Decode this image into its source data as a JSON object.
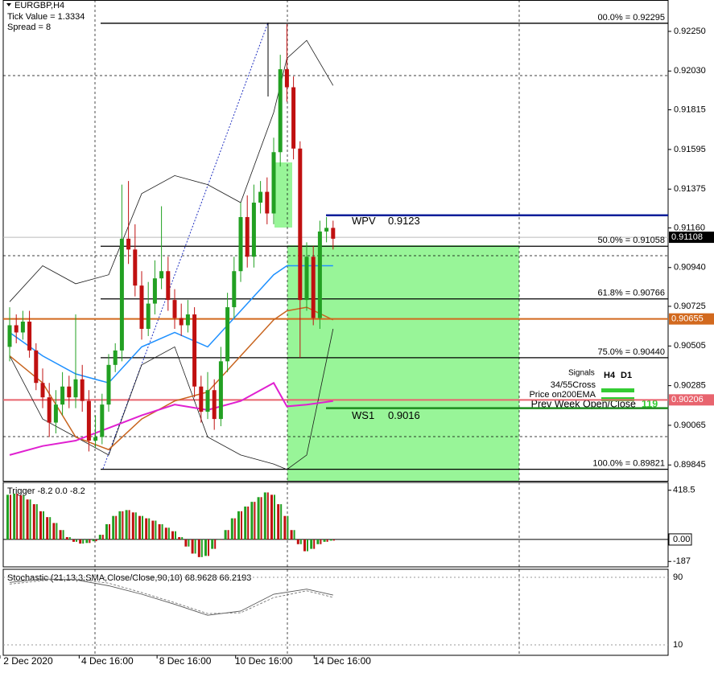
{
  "chart_data": {
    "type": "candlestick",
    "header": [
      "EURGBP,H4",
      "Tick Value = 1.3334",
      "Spread = 8"
    ],
    "up_color": "#22a022",
    "down_color": "#c01010",
    "ylim": [
      0.89757,
      0.92424
    ],
    "yticks": [
      {
        "value": 0.9225,
        "label": "0.92250"
      },
      {
        "value": 0.9203,
        "label": "0.92030"
      },
      0.91815,
      0.91595,
      0.91375,
      {
        "value": 0.9116,
        "label": "0.91160"
      },
      {
        "value": 0.9094,
        "label": "0.90940"
      },
      0.90725,
      0.90505,
      0.90285,
      0.90065,
      0.89845
    ],
    "xticks": [
      {
        "value": 2.8,
        "label": "2 Dec 2020"
      },
      {
        "value": 14.8,
        "label": "4 Dec 16:00"
      },
      {
        "value": 26.6,
        "label": "8 Dec 16:00"
      },
      {
        "value": 38.5,
        "label": "10 Dec 16:00"
      },
      {
        "value": 50.4,
        "label": "14 Dec 16:00"
      }
    ],
    "open": [
      0.905,
      0.9062,
      0.9058,
      0.9064,
      0.9048,
      0.903,
      0.9022,
      0.9008,
      0.9018,
      0.9028,
      0.9022,
      0.9032,
      0.902,
      0.8998,
      0.9,
      0.9018,
      0.904,
      0.9048,
      0.911,
      0.9104,
      0.9084,
      0.906,
      0.9074,
      0.9088,
      0.9092,
      0.9076,
      0.9066,
      0.9062,
      0.9068,
      0.9028,
      0.9014,
      0.9026,
      0.901,
      0.9042,
      0.9072,
      0.9092,
      0.9122,
      0.91,
      0.913,
      0.9136,
      0.9124,
      0.9158,
      0.9204,
      0.9194,
      0.916,
      0.9076,
      0.91,
      0.9066,
      0.9114,
      0.9116
    ],
    "high": [
      0.9072,
      0.9068,
      0.907,
      0.907,
      0.9052,
      0.9038,
      0.903,
      0.9026,
      0.9036,
      0.9034,
      0.9068,
      0.904,
      0.9026,
      0.9012,
      0.9024,
      0.9046,
      0.9052,
      0.914,
      0.9142,
      0.9118,
      0.9092,
      0.9086,
      0.9098,
      0.9128,
      0.91,
      0.9082,
      0.9074,
      0.9076,
      0.9072,
      0.9034,
      0.9036,
      0.9032,
      0.905,
      0.908,
      0.91,
      0.913,
      0.9134,
      0.914,
      0.9142,
      0.9144,
      0.9166,
      0.9212,
      0.9229,
      0.92,
      0.9164,
      0.9108,
      0.9106,
      0.912,
      0.9122,
      0.912
    ],
    "low": [
      0.9042,
      0.9052,
      0.9054,
      0.9044,
      0.9026,
      0.9016,
      0.9,
      0.9002,
      0.9012,
      0.9016,
      0.9016,
      0.9014,
      0.8992,
      0.8994,
      0.8996,
      0.9014,
      0.9036,
      0.9042,
      0.9096,
      0.9078,
      0.9054,
      0.9056,
      0.9068,
      0.9082,
      0.907,
      0.906,
      0.9056,
      0.9058,
      0.9022,
      0.9008,
      0.901,
      0.9004,
      0.9006,
      0.9036,
      0.9066,
      0.9086,
      0.9094,
      0.9094,
      0.9124,
      0.9118,
      0.9118,
      0.915,
      0.9186,
      0.9154,
      0.9044,
      0.907,
      0.9062,
      0.906,
      0.9108,
      0.9104
    ],
    "close": [
      0.9062,
      0.9058,
      0.9064,
      0.9048,
      0.903,
      0.9022,
      0.9008,
      0.9018,
      0.9028,
      0.9022,
      0.9032,
      0.902,
      0.8998,
      0.9,
      0.9018,
      0.904,
      0.9048,
      0.911,
      0.9104,
      0.9084,
      0.906,
      0.9074,
      0.9088,
      0.9092,
      0.9076,
      0.9066,
      0.9062,
      0.9068,
      0.9028,
      0.9014,
      0.9026,
      0.901,
      0.9042,
      0.9072,
      0.9092,
      0.9122,
      0.91,
      0.913,
      0.9136,
      0.9124,
      0.9158,
      0.9204,
      0.9194,
      0.916,
      0.9076,
      0.91,
      0.9066,
      0.9114,
      0.9116,
      0.911
    ],
    "lines_x": [
      0,
      5,
      10,
      15,
      20,
      25,
      30,
      35,
      40,
      42,
      45,
      49
    ],
    "lines": [
      {
        "color": "#1a1a1a",
        "width": 0.8,
        "values": [
          0.9075,
          0.9095,
          0.9085,
          0.909,
          0.9135,
          0.9145,
          0.914,
          0.913,
          0.918,
          0.921,
          0.922,
          0.9195
        ]
      },
      {
        "color": "#1a1a1a",
        "width": 0.8,
        "values": [
          0.9045,
          0.901,
          0.9,
          0.899,
          0.904,
          0.905,
          0.9,
          0.899,
          0.8985,
          0.8982,
          0.899,
          0.906
        ]
      },
      {
        "color": "#1e90ff",
        "width": 1.5,
        "values": [
          0.9058,
          0.9045,
          0.9035,
          0.903,
          0.905,
          0.9058,
          0.905,
          0.907,
          0.909,
          0.9095,
          0.9095,
          0.9095
        ]
      },
      {
        "color": "#c8641e",
        "width": 1.5,
        "values": [
          0.9045,
          0.903,
          0.9,
          0.8993,
          0.901,
          0.902,
          0.9025,
          0.9045,
          0.9065,
          0.907,
          0.9072,
          0.9065
        ]
      },
      {
        "color": "#e020d0",
        "width": 2,
        "values": [
          0.899,
          0.8995,
          0.8998,
          0.9005,
          0.9012,
          0.9018,
          0.9015,
          0.902,
          0.903,
          0.9017,
          0.9018,
          0.902
        ]
      }
    ],
    "levels": [
      {
        "value": 0.92295,
        "label": "00.0% = 0.92295"
      },
      {
        "value": 0.91058,
        "label": "50.0% = 0.91058"
      },
      {
        "value": 0.90766,
        "label": "61.8% = 0.90766"
      },
      {
        "value": 0.9044,
        "label": "75.0% = 0.90440"
      },
      {
        "value": 0.89821,
        "label": "100.0% = 0.89821"
      }
    ],
    "pivots": [
      {
        "name": "WPV",
        "value": 0.9123,
        "color": "#0a1e9a"
      },
      {
        "name": "WS1",
        "value": 0.9016,
        "color": "#1e8a1e"
      }
    ],
    "markers": [
      {
        "value": 0.90655,
        "color": "#d2691e"
      },
      {
        "value": 0.90206,
        "color": "#e8646e"
      },
      {
        "value": 0.91108,
        "color": "#000000"
      }
    ],
    "signals": {
      "title": "Signals",
      "columns": [
        "H4",
        "D1"
      ],
      "rows": [
        "34/55Cross",
        "Price on200EMA",
        "Prev Week Open/Close"
      ],
      "value": 119
    },
    "trigger": {
      "title": "Trigger -8.2 0.0 -8.2",
      "ylim": [
        -233,
        485
      ],
      "yticks": [
        418.5,
        {
          "value": 0,
          "label": "0.00"
        },
        -187
      ],
      "values": [
        380,
        390,
        375,
        340,
        300,
        240,
        190,
        140,
        80,
        20,
        -20,
        -35,
        -30,
        -15,
        40,
        130,
        200,
        240,
        250,
        230,
        200,
        180,
        160,
        130,
        100,
        70,
        20,
        -60,
        -120,
        -150,
        -140,
        -80,
        0,
        80,
        180,
        240,
        280,
        320,
        360,
        400,
        380,
        300,
        200,
        80,
        -40,
        -100,
        -80,
        -40,
        -20,
        -10
      ]
    },
    "stochastic": {
      "title": "Stochastic (21,13,3,SMA,Close/Close,90,10) 68.9628 66.2193",
      "ylim": [
        -2.4,
        99.5
      ],
      "yticks": [
        90,
        10
      ],
      "x": [
        0,
        5,
        10,
        15,
        20,
        25,
        30,
        35,
        40,
        45,
        49
      ],
      "series": [
        {
          "color": "#555555",
          "dash": false,
          "values": [
            84,
            88,
            87,
            80,
            70,
            58,
            45,
            50,
            70,
            76,
            68.9628
          ]
        },
        {
          "color": "#777777",
          "dash": true,
          "values": [
            82,
            86,
            88,
            83,
            72,
            60,
            47,
            48,
            66,
            74,
            66.2193
          ]
        }
      ]
    }
  }
}
